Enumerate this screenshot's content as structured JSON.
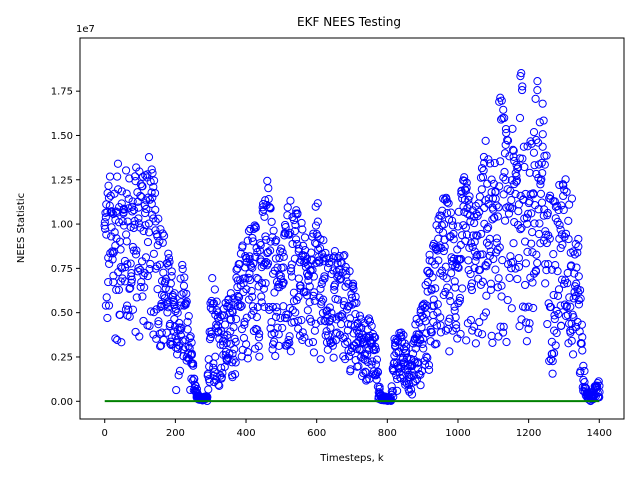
{
  "chart_data": {
    "type": "scatter",
    "title": "EKF NEES Testing",
    "xlabel": "Timesteps, k",
    "ylabel": "NEES Statistic",
    "y_offset_text": "1e7",
    "xlim": [
      -70,
      1470
    ],
    "ylim": [
      -0.1,
      2.05
    ],
    "y_scale_exponent": 7,
    "grid": false,
    "x_ticks": [
      0,
      200,
      400,
      600,
      800,
      1000,
      1200,
      1400
    ],
    "x_tick_labels": [
      "0",
      "200",
      "400",
      "600",
      "800",
      "1000",
      "1200",
      "1400"
    ],
    "y_ticks": [
      0.0,
      0.25,
      0.5,
      0.75,
      1.0,
      1.25,
      1.5,
      1.75
    ],
    "y_tick_labels": [
      "0.00",
      "0.25",
      "0.50",
      "0.75",
      "1.00",
      "1.25",
      "1.50",
      "1.75"
    ],
    "series": [
      {
        "marker": "open-circle",
        "color": "#0000ff",
        "envelope_segments": [
          [
            0,
            0.8,
            1.25
          ],
          [
            40,
            1.0,
            1.35
          ],
          [
            80,
            0.9,
            1.3
          ],
          [
            120,
            1.0,
            1.45
          ],
          [
            160,
            0.9,
            1.05
          ],
          [
            190,
            0.5,
            0.75
          ],
          [
            205,
            0.1,
            0.5
          ],
          [
            220,
            0.4,
            0.85
          ],
          [
            240,
            0.2,
            0.45
          ],
          [
            255,
            0.02,
            0.1
          ],
          [
            270,
            0.005,
            0.02
          ],
          [
            290,
            0.005,
            0.03
          ],
          [
            300,
            0.3,
            0.8
          ],
          [
            330,
            0.2,
            0.5
          ],
          [
            360,
            0.3,
            0.65
          ],
          [
            380,
            0.5,
            0.8
          ],
          [
            400,
            0.7,
            1.0
          ],
          [
            440,
            0.8,
            1.05
          ],
          [
            460,
            0.9,
            1.27
          ],
          [
            480,
            0.7,
            0.95
          ],
          [
            500,
            0.6,
            0.9
          ],
          [
            520,
            0.8,
            1.2
          ],
          [
            560,
            0.7,
            1.0
          ],
          [
            580,
            0.55,
            0.8
          ],
          [
            600,
            0.9,
            1.15
          ],
          [
            630,
            0.5,
            0.8
          ],
          [
            660,
            0.6,
            0.9
          ],
          [
            690,
            0.4,
            0.8
          ],
          [
            720,
            0.3,
            0.5
          ],
          [
            750,
            0.35,
            0.47
          ],
          [
            765,
            0.2,
            0.4
          ],
          [
            775,
            0.03,
            0.1
          ],
          [
            785,
            0.003,
            0.03
          ],
          [
            810,
            0.002,
            0.02
          ],
          [
            820,
            0.1,
            0.38
          ],
          [
            840,
            0.2,
            0.42
          ],
          [
            860,
            0.05,
            0.25
          ],
          [
            880,
            0.2,
            0.45
          ],
          [
            900,
            0.3,
            0.6
          ],
          [
            920,
            0.5,
            0.85
          ],
          [
            940,
            0.7,
            1.0
          ],
          [
            960,
            0.8,
            1.2
          ],
          [
            980,
            0.85,
            1.1
          ],
          [
            1000,
            0.7,
            1.1
          ],
          [
            1020,
            0.9,
            1.3
          ],
          [
            1040,
            0.8,
            1.1
          ],
          [
            1060,
            0.85,
            1.2
          ],
          [
            1080,
            1.0,
            1.55
          ],
          [
            1100,
            0.9,
            1.2
          ],
          [
            1120,
            0.9,
            1.8
          ],
          [
            1140,
            1.0,
            1.5
          ],
          [
            1160,
            1.1,
            1.55
          ],
          [
            1180,
            1.2,
            1.9
          ],
          [
            1200,
            0.6,
            1.4
          ],
          [
            1220,
            1.0,
            1.88
          ],
          [
            1240,
            1.0,
            1.7
          ],
          [
            1260,
            0.4,
            1.2
          ],
          [
            1280,
            0.6,
            1.2
          ],
          [
            1300,
            0.9,
            1.3
          ],
          [
            1320,
            0.4,
            1.2
          ],
          [
            1340,
            0.55,
            1.05
          ],
          [
            1350,
            0.1,
            0.45
          ],
          [
            1360,
            0.02,
            0.1
          ],
          [
            1375,
            0.003,
            0.03
          ],
          [
            1395,
            0.002,
            0.12
          ]
        ]
      },
      {
        "type": "line",
        "color": "#008000",
        "x": [
          0,
          1400
        ],
        "y": [
          0.001,
          0.001
        ]
      }
    ]
  }
}
